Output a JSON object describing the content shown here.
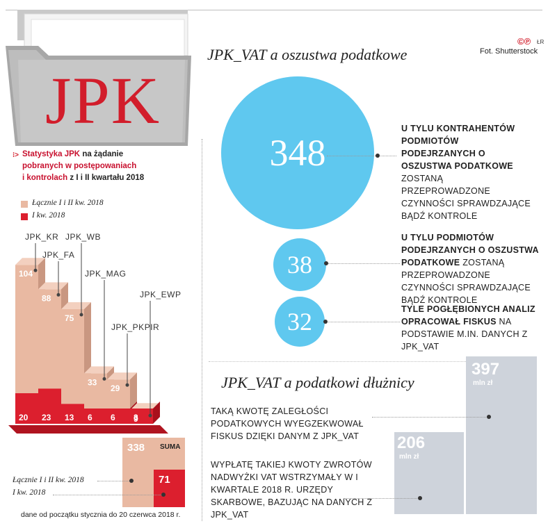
{
  "header": {
    "logo_text": "JPK",
    "credit_line1": "ŁR",
    "credit_line2": "Fot. Shutterstock"
  },
  "left": {
    "stat_title_red1": "Statystyka JPK",
    "stat_title_black1": "na żądanie",
    "stat_title_red2": "pobranych w postępowaniach",
    "stat_title_red3": "i kontrolach",
    "stat_title_black3": "z I i II kwartału 2018",
    "legend": [
      {
        "label": "Łącznie I i II kw. 2018",
        "color": "#e9b9a2"
      },
      {
        "label": "I kw. 2018",
        "color": "#dc1f2e"
      }
    ],
    "suma_label": "SUMA",
    "suma_total": "338",
    "suma_q1": "71",
    "suma_legend_total": "Łącznie I i II kw. 2018",
    "suma_legend_q1": "I kw. 2018",
    "footnote": "dane od początku stycznia do 20 czerwca 2018 r."
  },
  "chart_data": {
    "type": "bar",
    "categories": [
      "JPK_KR",
      "JPK_FA",
      "JPK_WB",
      "JPK_MAG",
      "JPK_PKPIR",
      "JPK_EWP"
    ],
    "series": [
      {
        "name": "Łącznie I i II kw. 2018",
        "values": [
          104,
          88,
          75,
          33,
          29,
          9
        ]
      },
      {
        "name": "I kw. 2018",
        "values": [
          20,
          23,
          13,
          6,
          6,
          3
        ]
      }
    ],
    "colors": {
      "total": "#e9b9a2",
      "q1": "#dc1f2e"
    }
  },
  "fraud": {
    "title": "JPK_VAT a oszustwa podatkowe",
    "items": [
      {
        "value": "348",
        "bold": "U TYLU KONTRAHENTÓW PODMIOTÓW PODEJRZANYCH O OSZUSTWA PODATKOWE",
        "rest": "ZOSTANĄ PRZEPROWADZONE CZYNNOŚCI SPRAWDZAJĄCE BĄDŹ KONTROLE"
      },
      {
        "value": "38",
        "bold": "U TYLU PODMIOTÓW PODEJRZANYCH O OSZUSTWA PODATKOWE",
        "rest": "ZOSTANĄ PRZEPROWADZONE CZYNNOŚCI SPRAWDZAJĄCE BĄDŹ KONTROLE"
      },
      {
        "value": "32",
        "bold": "TYLE POGŁĘBIONYCH ANALIZ OPRACOWAŁ FISKUS",
        "rest": "NA PODSTAWIE M.IN. DANYCH Z JPK_VAT"
      }
    ]
  },
  "debtors": {
    "title": "JPK_VAT a podatkowi dłużnicy",
    "text1": "TAKĄ KWOTĘ ZALEGŁOŚCI PODATKOWYCH WYEGZEKWOWAŁ FISKUS DZIĘKI DANYM Z JPK_VAT",
    "text2": "WYPŁATĘ TAKIEJ KWOTY ZWROTÓW NADWYŻKI VAT WSTRZYMAŁY W I KWARTALE 2018 R. URZĘDY SKARBOWE, BAZUJĄC NA DANYCH Z JPK_VAT",
    "bar1_value": "397",
    "bar2_value": "206",
    "unit": "mln zł"
  }
}
